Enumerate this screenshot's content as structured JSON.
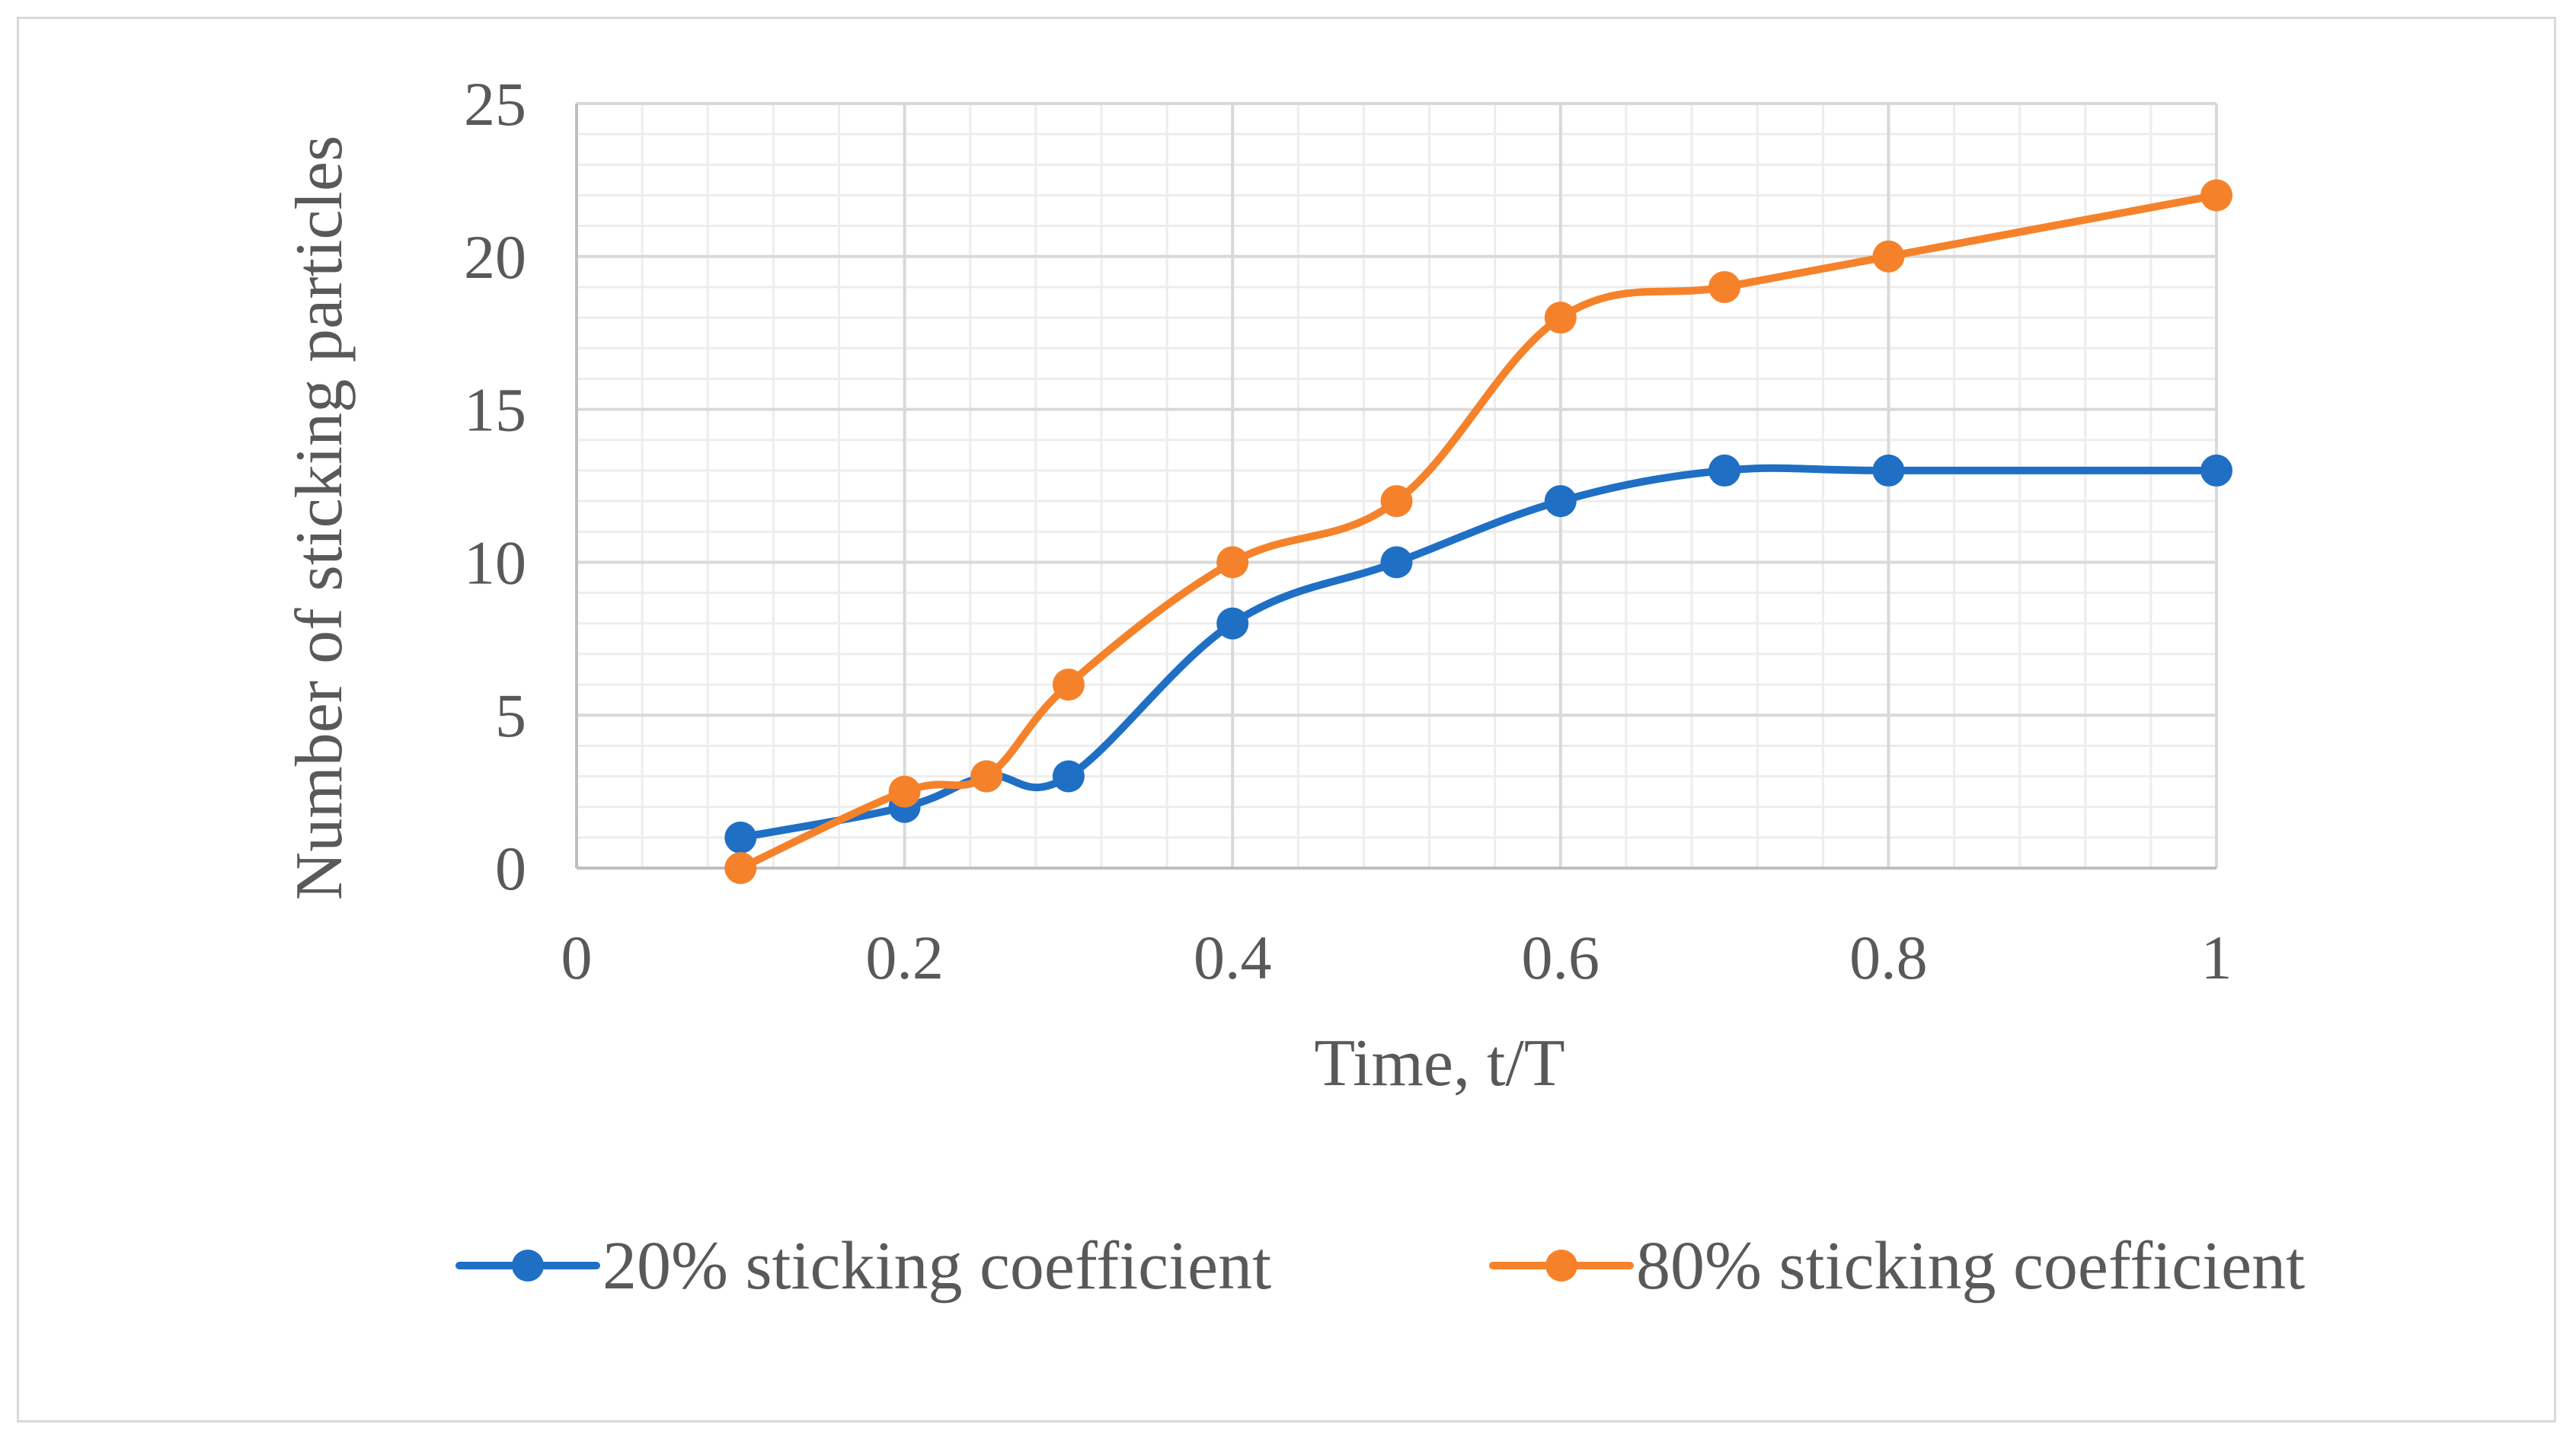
{
  "chart_data": {
    "type": "line",
    "title": "",
    "xlabel": "Time, t/T",
    "ylabel": "Number of sticking particles",
    "xlim": [
      0,
      1
    ],
    "ylim": [
      0,
      25
    ],
    "xticks": [
      "0",
      "0.2",
      "0.4",
      "0.6",
      "0.8",
      "1"
    ],
    "yticks": [
      "0",
      "5",
      "10",
      "15",
      "20",
      "25"
    ],
    "grid": true,
    "legend_position": "bottom",
    "smooth": true,
    "series": [
      {
        "name": "20% sticking coefficient",
        "color": "#1f6fc5",
        "x": [
          0.1,
          0.2,
          0.25,
          0.3,
          0.4,
          0.5,
          0.6,
          0.7,
          0.8,
          1.0
        ],
        "y": [
          1,
          2,
          3,
          3,
          8,
          10,
          12,
          13,
          13,
          13
        ]
      },
      {
        "name": "80% sticking coefficient",
        "color": "#f5822a",
        "x": [
          0.1,
          0.2,
          0.25,
          0.3,
          0.4,
          0.5,
          0.6,
          0.7,
          0.8,
          1.0
        ],
        "y": [
          0,
          2.5,
          3,
          6,
          10,
          12,
          18,
          19,
          20,
          22
        ]
      }
    ]
  }
}
